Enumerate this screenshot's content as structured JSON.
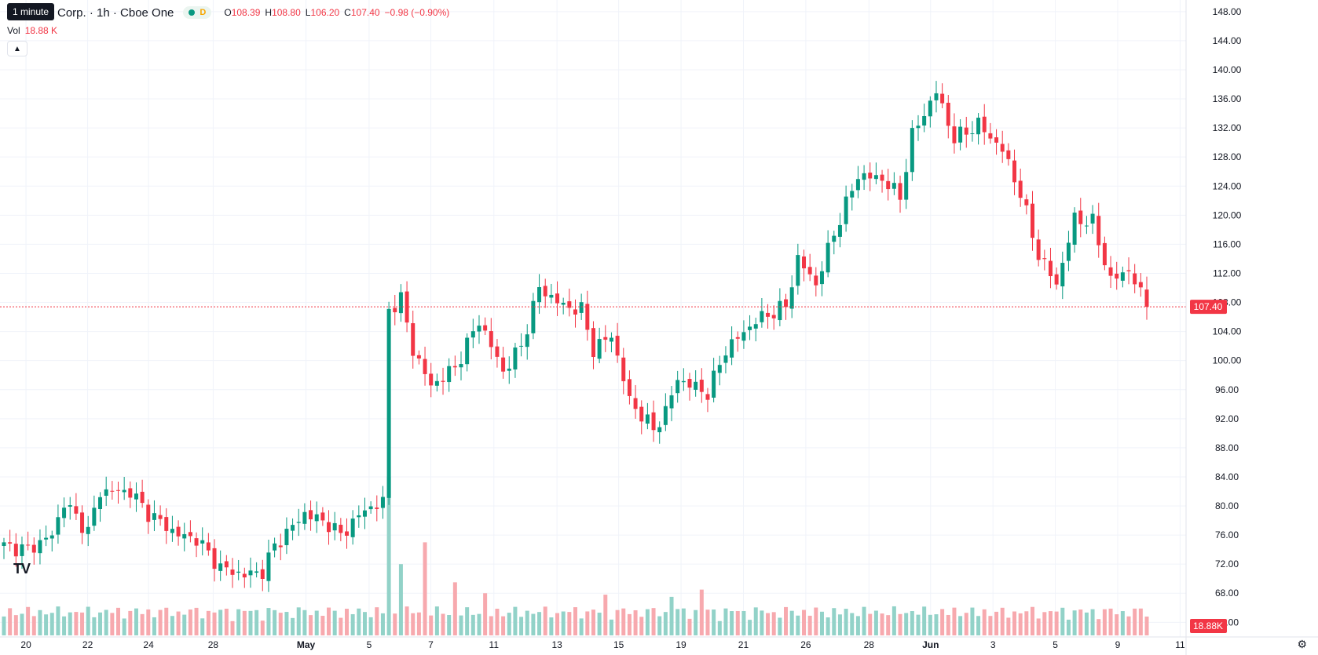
{
  "header": {
    "title": "Corp. · 1h · Cboe One",
    "status_letter": "D",
    "ohlc": [
      {
        "label": "O",
        "value": "108.39"
      },
      {
        "label": "H",
        "value": "108.80"
      },
      {
        "label": "L",
        "value": "106.20"
      },
      {
        "label": "C",
        "value": "107.40"
      }
    ],
    "change": "−0.98 (−0.90%)",
    "tooltip": "1 minute"
  },
  "volume_legend": {
    "label": "Vol",
    "value": "18.88 K"
  },
  "colors": {
    "up": "#089981",
    "down": "#f23645",
    "up_vol": "#92d2c8",
    "down_vol": "#f7a9ae",
    "grid": "#f0f3fa",
    "price_line": "#f23645"
  },
  "chart_data": {
    "type": "candlestick",
    "interval": "1h",
    "x_tick_labels": [
      "20",
      "22",
      "24",
      "28",
      "May",
      "5",
      "7",
      "11",
      "13",
      "15",
      "19",
      "21",
      "26",
      "28",
      "Jun",
      "3",
      "5",
      "9",
      "11"
    ],
    "y_tick_labels": [
      "148.00",
      "144.00",
      "140.00",
      "136.00",
      "132.00",
      "128.00",
      "124.00",
      "120.00",
      "116.00",
      "112.00",
      "108.00",
      "104.00",
      "100.00",
      "96.00",
      "92.00",
      "88.00",
      "84.00",
      "80.00",
      "76.00",
      "72.00",
      "68.00",
      "64.00"
    ],
    "ylim": [
      62.2,
      149.6
    ],
    "last_price_label": "107.40",
    "last_price": 107.4,
    "volume_label": "18.88K",
    "grid": true,
    "close_anchors": [
      [
        0,
        74.5
      ],
      [
        4,
        74.0
      ],
      [
        8,
        76.0
      ],
      [
        10,
        80.5
      ],
      [
        14,
        76.5
      ],
      [
        16,
        82.0
      ],
      [
        21,
        82.0
      ],
      [
        24,
        79.0
      ],
      [
        29,
        76.0
      ],
      [
        32,
        75.5
      ],
      [
        36,
        71.5
      ],
      [
        40,
        70.5
      ],
      [
        43,
        71.0
      ],
      [
        45,
        74.5
      ],
      [
        50,
        79.0
      ],
      [
        54,
        77.5
      ],
      [
        56,
        76.0
      ],
      [
        60,
        79.5
      ],
      [
        63,
        80.5
      ],
      [
        64,
        107.0
      ],
      [
        66,
        108.5
      ],
      [
        68,
        101.5
      ],
      [
        71,
        96.5
      ],
      [
        75,
        99.0
      ],
      [
        79,
        105.5
      ],
      [
        83,
        98.5
      ],
      [
        86,
        102.0
      ],
      [
        89,
        110.0
      ],
      [
        93,
        107.5
      ],
      [
        96,
        107.0
      ],
      [
        98,
        101.5
      ],
      [
        101,
        103.5
      ],
      [
        104,
        94.5
      ],
      [
        108,
        90.5
      ],
      [
        110,
        93.0
      ],
      [
        112,
        97.5
      ],
      [
        117,
        95.5
      ],
      [
        120,
        101.5
      ],
      [
        125,
        105.5
      ],
      [
        130,
        107.5
      ],
      [
        132,
        114.0
      ],
      [
        135,
        110.5
      ],
      [
        138,
        117.5
      ],
      [
        142,
        125.5
      ],
      [
        146,
        125.0
      ],
      [
        149,
        122.5
      ],
      [
        151,
        131.0
      ],
      [
        155,
        137.0
      ],
      [
        158,
        130.5
      ],
      [
        162,
        132.5
      ],
      [
        166,
        129.0
      ],
      [
        169,
        123.0
      ],
      [
        172,
        114.5
      ],
      [
        175,
        110.5
      ],
      [
        178,
        119.5
      ],
      [
        181,
        119.0
      ],
      [
        184,
        111.0
      ],
      [
        187,
        112.5
      ],
      [
        190,
        107.4
      ]
    ],
    "volume_spikes": [
      [
        64,
        84.0
      ],
      [
        66,
        72.0
      ],
      [
        70,
        75.0
      ],
      [
        75,
        69.5
      ],
      [
        80,
        68.0
      ],
      [
        100,
        67.8
      ],
      [
        111,
        67.5
      ],
      [
        116,
        68.5
      ],
      [
        166,
        66.0
      ]
    ]
  }
}
